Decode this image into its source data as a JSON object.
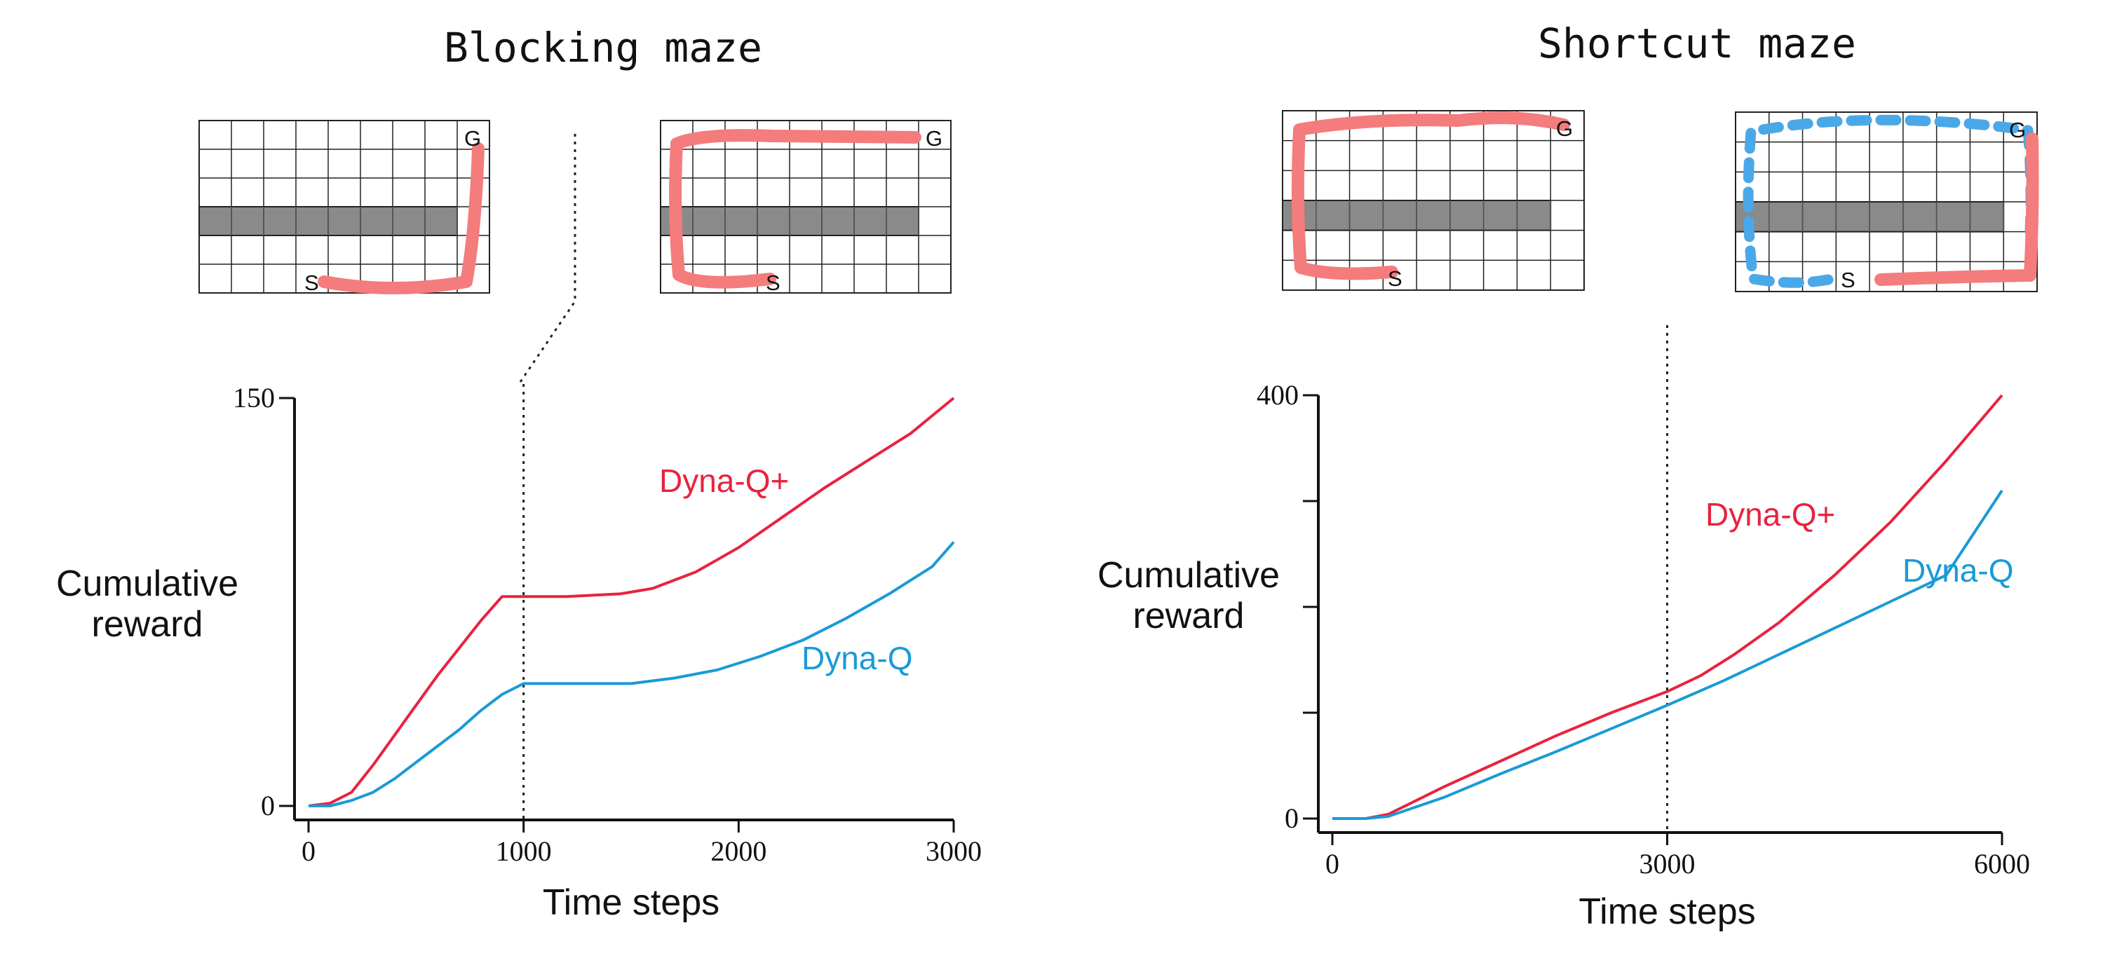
{
  "panels": [
    {
      "title": "Blocking maze",
      "maze_before": {
        "start_label": "S",
        "goal_label": "G"
      },
      "maze_after": {
        "start_label": "S",
        "goal_label": "G"
      }
    },
    {
      "title": "Shortcut maze",
      "maze_before": {
        "start_label": "S",
        "goal_label": "G"
      },
      "maze_after": {
        "start_label": "S",
        "goal_label": "G"
      }
    }
  ],
  "colors": {
    "dyna_q_plus": "#e8233f",
    "dyna_q": "#1a9ad6",
    "path_highlight": "#f47c7c",
    "path_dashed": "#4aa8e8",
    "wall": "#8a8a8a"
  },
  "chart_data": [
    {
      "type": "line",
      "title": "Blocking maze",
      "xlabel": "Time steps",
      "ylabel": "Cumulative\nreward",
      "xlim": [
        0,
        3000
      ],
      "ylim": [
        0,
        150
      ],
      "xticks": [
        0,
        1000,
        2000,
        3000
      ],
      "yticks": [
        0,
        150
      ],
      "vline": 1000,
      "grid": false,
      "series": [
        {
          "name": "Dyna-Q+",
          "color": "#e8233f",
          "x": [
            0,
            100,
            200,
            300,
            400,
            500,
            600,
            700,
            800,
            900,
            1000,
            1200,
            1450,
            1600,
            1800,
            2000,
            2200,
            2400,
            2600,
            2800,
            3000
          ],
          "y": [
            0,
            1,
            5,
            15,
            26,
            37,
            48,
            58,
            68,
            77,
            77,
            77,
            78,
            80,
            86,
            95,
            106,
            117,
            127,
            137,
            150
          ]
        },
        {
          "name": "Dyna-Q",
          "color": "#1a9ad6",
          "x": [
            0,
            100,
            200,
            300,
            400,
            500,
            600,
            700,
            800,
            900,
            1000,
            1200,
            1500,
            1700,
            1900,
            2100,
            2300,
            2500,
            2700,
            2900,
            3000
          ],
          "y": [
            0,
            0,
            2,
            5,
            10,
            16,
            22,
            28,
            35,
            41,
            45,
            45,
            45,
            47,
            50,
            55,
            61,
            69,
            78,
            88,
            97
          ]
        }
      ]
    },
    {
      "type": "line",
      "title": "Shortcut maze",
      "xlabel": "Time steps",
      "ylabel": "Cumulative\nreward",
      "xlim": [
        0,
        6000
      ],
      "ylim": [
        0,
        400
      ],
      "xticks": [
        0,
        3000,
        6000
      ],
      "yticks": [
        0,
        400
      ],
      "minor_yticks": [
        100,
        200,
        300
      ],
      "vline": 3000,
      "grid": false,
      "series": [
        {
          "name": "Dyna-Q+",
          "color": "#e8233f",
          "x": [
            0,
            300,
            500,
            1000,
            1500,
            2000,
            2500,
            3000,
            3300,
            3600,
            4000,
            4500,
            5000,
            5500,
            6000
          ],
          "y": [
            0,
            0,
            4,
            30,
            54,
            78,
            100,
            120,
            135,
            155,
            185,
            230,
            280,
            338,
            400
          ]
        },
        {
          "name": "Dyna-Q",
          "color": "#1a9ad6",
          "x": [
            0,
            300,
            500,
            1000,
            1500,
            2000,
            2500,
            3000,
            3500,
            4000,
            4500,
            5000,
            5500,
            6000
          ],
          "y": [
            0,
            0,
            2,
            20,
            42,
            63,
            85,
            107,
            130,
            155,
            180,
            205,
            230,
            310
          ]
        }
      ]
    }
  ]
}
